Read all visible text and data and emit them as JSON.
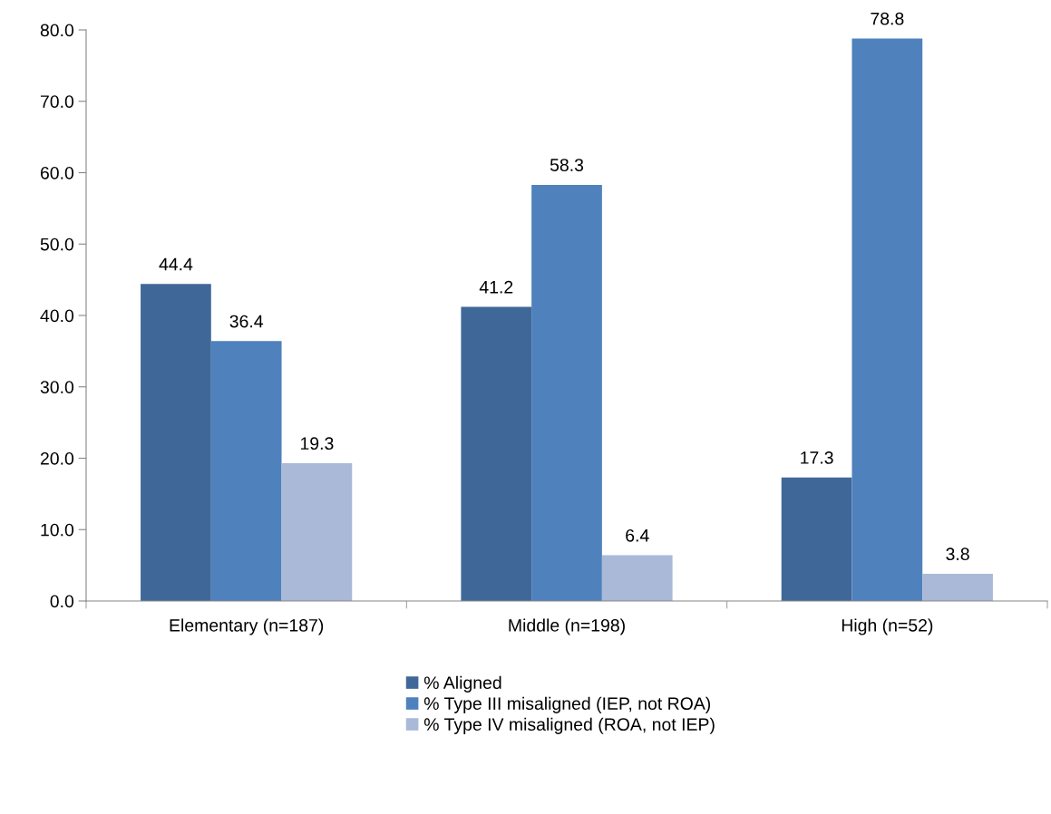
{
  "chart_data": {
    "type": "bar",
    "categories": [
      "Elementary (n=187)",
      "Middle (n=198)",
      "High (n=52)"
    ],
    "series": [
      {
        "name": "% Aligned",
        "color": "#3f6899",
        "values": [
          44.4,
          41.2,
          17.3
        ]
      },
      {
        "name": "% Type III misaligned (IEP, not ROA)",
        "color": "#4f81bd",
        "values": [
          36.4,
          58.3,
          78.8
        ]
      },
      {
        "name": "% Type IV misaligned (ROA, not IEP)",
        "color": "#aab9d7",
        "values": [
          19.3,
          6.4,
          3.8
        ]
      }
    ],
    "ylim": [
      0,
      80
    ],
    "yticks": [
      {
        "value": 0,
        "label": "0.0"
      },
      {
        "value": 10,
        "label": "10.0"
      },
      {
        "value": 20,
        "label": "20.0"
      },
      {
        "value": 30,
        "label": "30.0"
      },
      {
        "value": 40,
        "label": "40.0"
      },
      {
        "value": 50,
        "label": "50.0"
      },
      {
        "value": 60,
        "label": "60.0"
      },
      {
        "value": 70,
        "label": "70.0"
      },
      {
        "value": 80,
        "label": "80.0"
      }
    ],
    "data_labels": true,
    "grid": false,
    "legend": "bottom"
  }
}
